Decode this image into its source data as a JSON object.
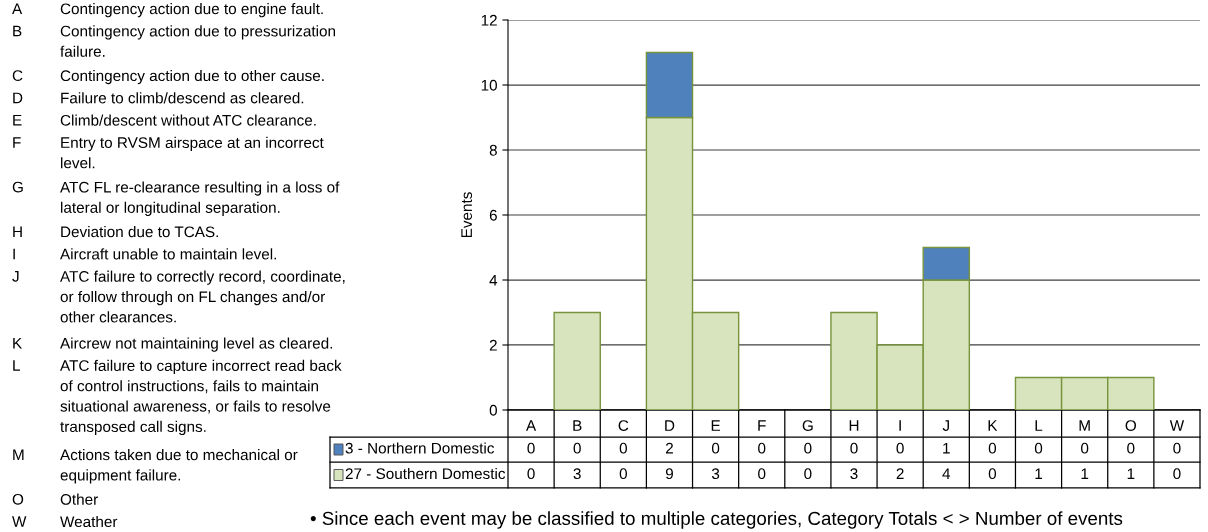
{
  "chart_data": {
    "type": "bar",
    "ylabel": "Events",
    "stacked": true,
    "categories": [
      "A",
      "B",
      "C",
      "D",
      "E",
      "F",
      "G",
      "H",
      "I",
      "J",
      "K",
      "L",
      "M",
      "O",
      "W"
    ],
    "series": [
      {
        "name": "27 - Southern Domestic",
        "color": "#d7e4bd",
        "values": [
          0,
          3,
          0,
          9,
          3,
          0,
          0,
          3,
          2,
          4,
          0,
          1,
          1,
          1,
          0
        ]
      },
      {
        "name": "3 - Northern Domestic",
        "color": "#4f81bd",
        "values": [
          0,
          0,
          0,
          2,
          0,
          0,
          0,
          0,
          0,
          1,
          0,
          0,
          0,
          0,
          0
        ]
      }
    ],
    "ylim": [
      0,
      12
    ],
    "yticks": [
      0,
      2,
      4,
      6,
      8,
      10,
      12
    ],
    "grid": "y",
    "legend": "bottom left",
    "data_labels": true,
    "annotations": [
      "A Contingency action due to engine fault.",
      "B Contingency action due to pressurization\nfailure.",
      "C Contingency action due to other cause.",
      "D Failure to climb/descend as cleared.",
      "E Climb/descent without ATC clearance.",
      "F Entry to RVSM airspace at an incorrect\nlevel.",
      "G ATC FL re-clearance resulting in a loss of\nlateral or longitudinal separation.",
      "H Deviation due to TCAS.",
      "I Aircraft unable to maintain level.",
      "J ATC failure to correctly record, coordinate,\nor follow through on FL changes and/or\nother clearances.",
      "K Aircrew not maintaining level as cleared.",
      "L ATC failure to capture incorrect read back\nof control instructions, fails to maintain\nsituational awareness, or fails to resolve\ntransposed call signs.",
      "M Actions taken due to mechanical or\nequipment failure.",
      "O Other",
      "W Weather",
      "• Since each event may be classified to multiple categories, Category Totals < > Number of events"
    ]
  }
}
